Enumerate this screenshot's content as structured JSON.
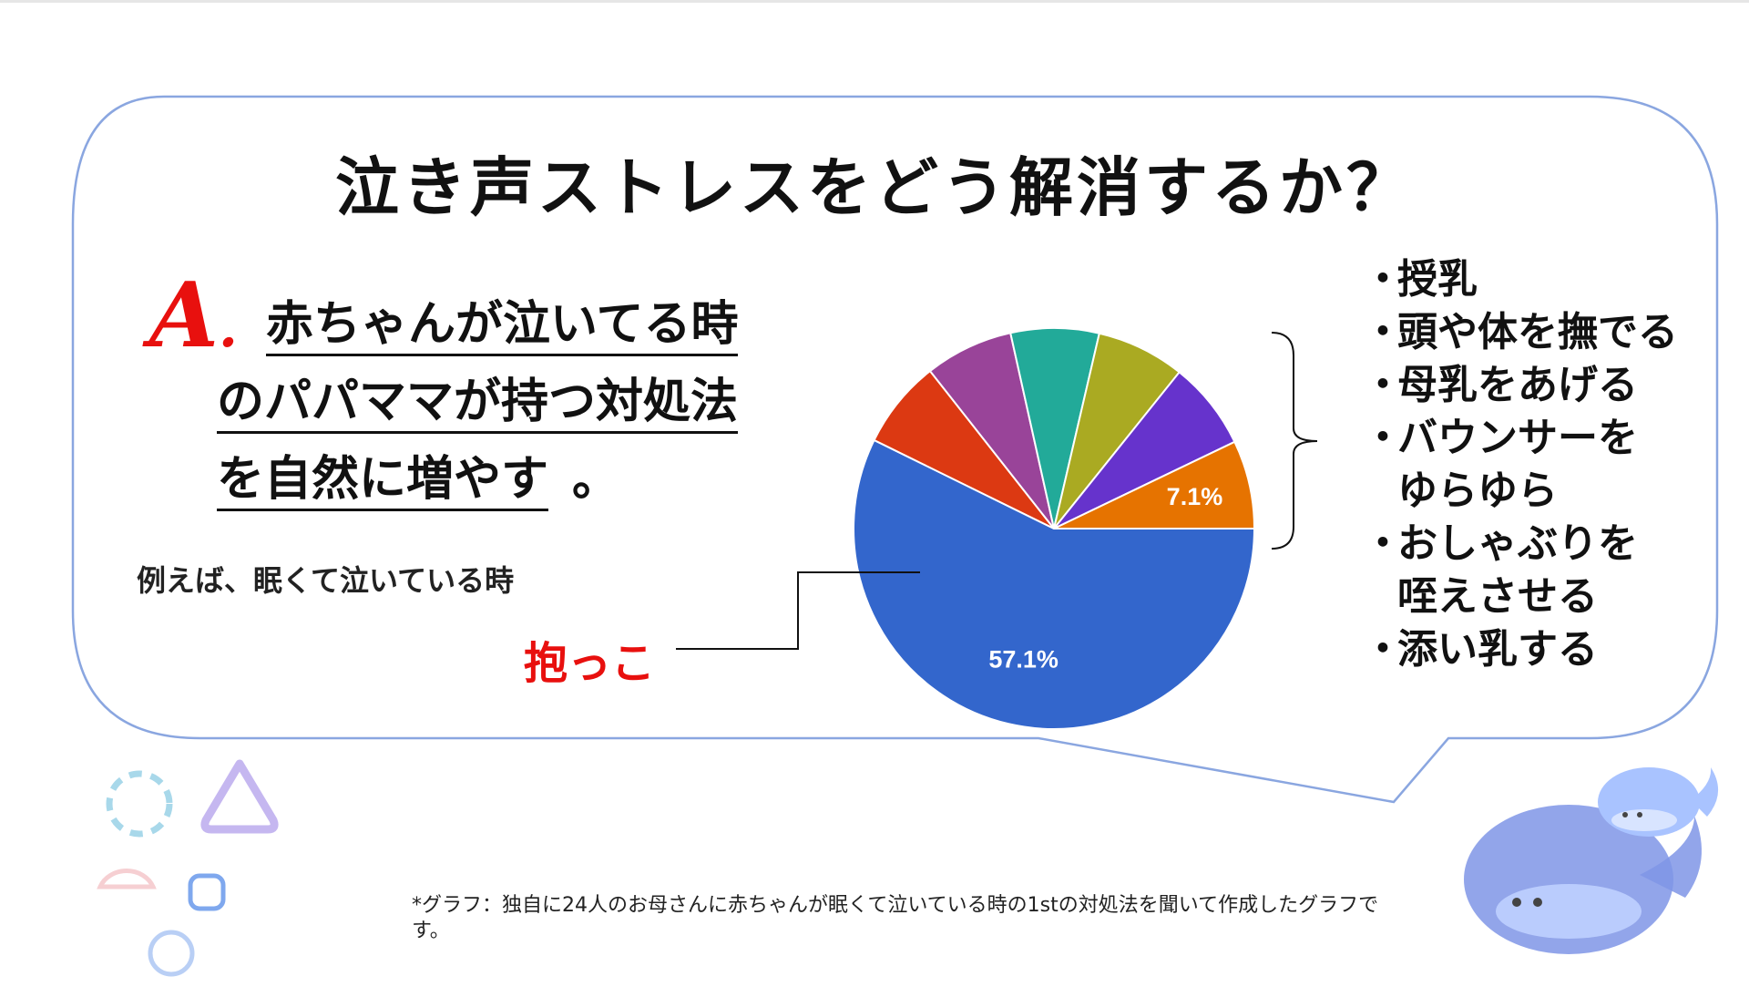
{
  "title": "泣き声ストレスをどう解消するか？",
  "answer": {
    "letter": "A",
    "punct": ".",
    "lines": [
      "赤ちゃんが泣いてる時",
      "のパパママが持つ対処法",
      "を自然に増やす"
    ],
    "tail": "。"
  },
  "example_text": "例えば、眠くて泣いている時",
  "callout_label": "抱っこ",
  "bullets": [
    {
      "dot": "・",
      "text": "授乳"
    },
    {
      "dot": "・",
      "text": "頭や体を撫でる"
    },
    {
      "dot": "・",
      "text": "母乳をあげる"
    },
    {
      "dot": "・",
      "text": "バウンサーを\nゆらゆら"
    },
    {
      "dot": "・",
      "text": "おしゃぶりを\n咥えさせる"
    },
    {
      "dot": "・",
      "text": "添い乳する"
    }
  ],
  "footnote": "*グラフ：独自に24人のお母さんに赤ちゃんが眠くて泣いている時の1stの対処法を聞いて作成したグラフです。",
  "colors": {
    "accent_red": "#e8100e",
    "bubble_stroke": "#8aa6e0"
  },
  "chart_data": {
    "type": "pie",
    "title": "",
    "start": "3 o'clock",
    "direction": "clockwise",
    "slices": [
      {
        "value": 57.1,
        "label": "57.1%",
        "color": "#3366cc"
      },
      {
        "value": 7.1,
        "label": "",
        "color": "#dc3912"
      },
      {
        "value": 7.1,
        "label": "",
        "color": "#994499"
      },
      {
        "value": 7.1,
        "label": "",
        "color": "#22aa99"
      },
      {
        "value": 7.1,
        "label": "",
        "color": "#aaaa22"
      },
      {
        "value": 7.1,
        "label": "",
        "color": "#6633cc"
      },
      {
        "value": 7.1,
        "label": "7.1%",
        "color": "#e67300"
      }
    ]
  }
}
